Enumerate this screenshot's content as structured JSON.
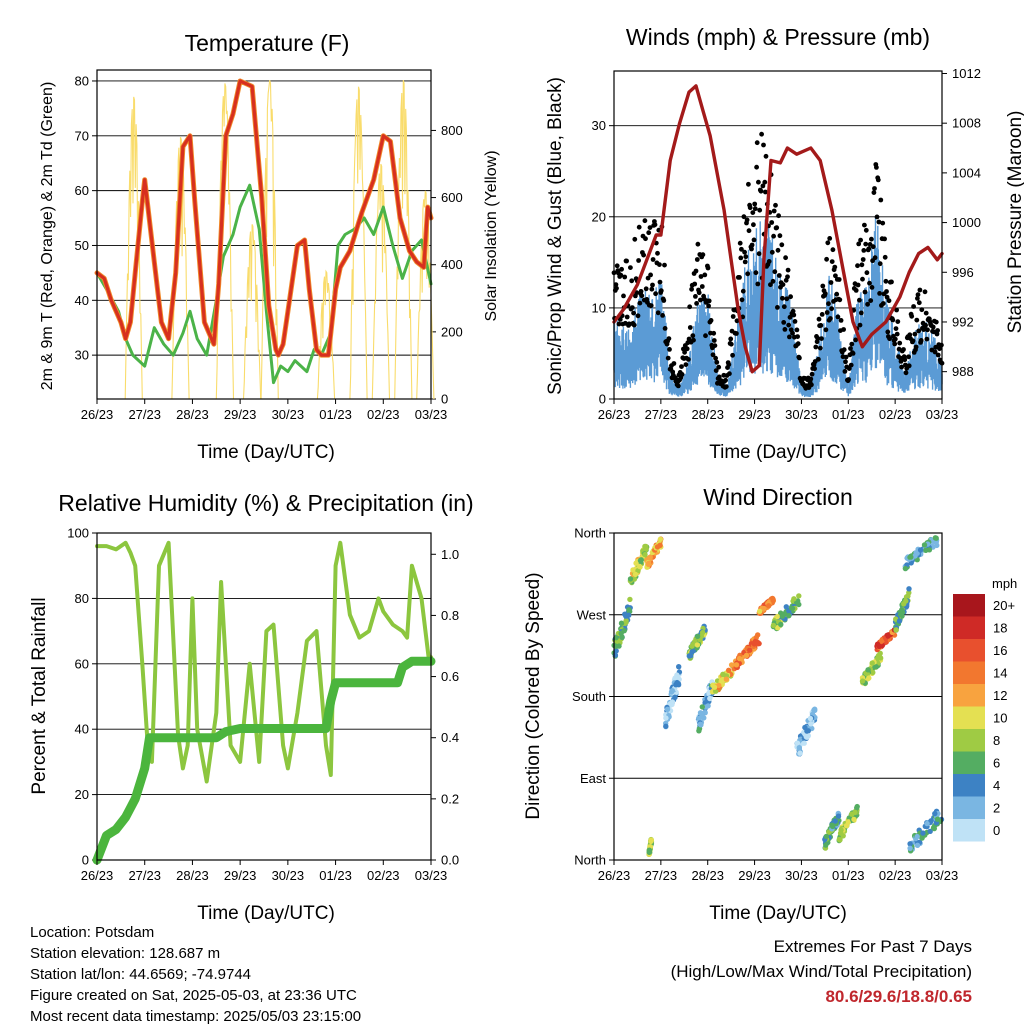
{
  "x_ticks": [
    "26/23",
    "27/23",
    "28/23",
    "29/23",
    "30/23",
    "01/23",
    "02/23",
    "03/23"
  ],
  "temperature": {
    "title": "Temperature (F)",
    "ylabel_left": "2m & 9m T (Red, Orange) & 2m Td (Green)",
    "ylabel_right": "Solar Insolation (Yellow)",
    "xlabel": "Time (Day/UTC)"
  },
  "winds": {
    "title": "Winds (mph) & Pressure (mb)",
    "ylabel_left": "Sonic/Prop Wind & Gust (Blue, Black)",
    "ylabel_right": "Station Pressure (Maroon)",
    "xlabel": "Time (Day/UTC)"
  },
  "humidity": {
    "title": "Relative Humidity (%) & Precipitation (in)",
    "ylabel_left": "Percent & Total Rainfall",
    "xlabel": "Time (Day/UTC)"
  },
  "direction": {
    "title": "Wind Direction",
    "ylabel_left": "Direction (Colored By Speed)",
    "xlabel": "Time (Day/UTC)",
    "legend_title": "mph",
    "legend_labels": [
      "20+",
      "18",
      "16",
      "14",
      "12",
      "10",
      "8",
      "6",
      "4",
      "2",
      "0"
    ],
    "legend_colors": [
      "#a8161c",
      "#cf2a26",
      "#e8502e",
      "#f2772f",
      "#f8a33f",
      "#e4e052",
      "#9fcb44",
      "#54ad62",
      "#3d82c4",
      "#7ab6e2",
      "#bfe2f6"
    ]
  },
  "info": {
    "location": "Location: Potsdam",
    "elevation": "Station elevation: 128.687 m",
    "latlon": "Station lat/lon: 44.6569; -74.9744",
    "created": "Figure created on Sat, 2025-05-03, at 23:36 UTC",
    "recent": "Most recent data timestamp: 2025/05/03 23:15:00"
  },
  "extremes": {
    "line1": "Extremes For Past 7 Days",
    "line2": "(High/Low/Max Wind/Total Precipitation)",
    "values": "80.6/29.6/18.8/0.65"
  },
  "chart_data": [
    {
      "type": "line",
      "title": "Temperature (F)",
      "xlabel": "Time (Day/UTC)",
      "ylabel": "2m & 9m T (Red, Orange) & 2m Td (Green)",
      "ylim": [
        22,
        82
      ],
      "y_ticks": [
        30,
        40,
        50,
        60,
        70,
        80
      ],
      "y2label": "Solar Insolation (Yellow)",
      "y2lim": [
        0,
        980
      ],
      "y2_ticks": [
        0,
        200,
        400,
        600,
        800
      ],
      "x_days": [
        0,
        7
      ],
      "series": [
        {
          "name": "2m & 9m T",
          "color": "#d7301f",
          "x": [
            0,
            0.15,
            0.3,
            0.5,
            0.6,
            0.7,
            0.8,
            0.95,
            1.0,
            1.2,
            1.35,
            1.5,
            1.65,
            1.8,
            1.95,
            2.05,
            2.25,
            2.45,
            2.55,
            2.7,
            2.85,
            3.0,
            3.25,
            3.45,
            3.6,
            3.75,
            3.8,
            3.9,
            4.0,
            4.2,
            4.35,
            4.45,
            4.6,
            4.7,
            4.85,
            5.0,
            5.1,
            5.3,
            5.55,
            5.8,
            6.0,
            6.15,
            6.35,
            6.55,
            6.7,
            6.85,
            6.93,
            7.0
          ],
          "y": [
            45,
            44,
            40,
            36,
            33,
            36,
            45,
            58,
            62,
            47,
            36,
            33,
            45,
            68,
            70,
            58,
            36,
            32,
            43,
            70,
            74,
            80,
            79,
            59,
            39,
            31,
            30,
            32,
            38,
            50,
            51,
            42,
            31,
            30,
            30,
            42,
            46,
            49,
            56,
            62,
            70,
            69,
            55,
            49,
            47,
            46,
            57,
            55
          ]
        },
        {
          "name": "2m Td",
          "color": "#4bb348",
          "x": [
            0,
            0.2,
            0.45,
            0.6,
            0.75,
            1.0,
            1.2,
            1.4,
            1.6,
            1.8,
            1.95,
            2.1,
            2.3,
            2.5,
            2.65,
            2.85,
            3.0,
            3.2,
            3.4,
            3.55,
            3.7,
            3.85,
            4.0,
            4.15,
            4.4,
            4.55,
            4.7,
            4.9,
            5.05,
            5.2,
            5.4,
            5.6,
            5.8,
            6.0,
            6.2,
            6.4,
            6.6,
            6.8,
            7.0
          ],
          "y": [
            45,
            42,
            38,
            33,
            30,
            28,
            35,
            32,
            30,
            34,
            38,
            33,
            30,
            40,
            48,
            52,
            57,
            61,
            53,
            38,
            25,
            28,
            27,
            29,
            27,
            31,
            30,
            34,
            50,
            52,
            53,
            55,
            52,
            57,
            50,
            44,
            49,
            51,
            43
          ]
        }
      ],
      "insolation_peaks": [
        {
          "x": 0.77,
          "v": 900
        },
        {
          "x": 1.75,
          "v": 780
        },
        {
          "x": 2.68,
          "v": 940
        },
        {
          "x": 3.25,
          "v": 520
        },
        {
          "x": 3.62,
          "v": 950
        },
        {
          "x": 4.8,
          "v": 380
        },
        {
          "x": 5.48,
          "v": 930
        },
        {
          "x": 5.95,
          "v": 700
        },
        {
          "x": 6.42,
          "v": 950
        },
        {
          "x": 6.88,
          "v": 620
        }
      ]
    },
    {
      "type": "line",
      "title": "Winds (mph) & Pressure (mb)",
      "xlabel": "Time (Day/UTC)",
      "ylabel": "Sonic/Prop Wind & Gust (Blue, Black)",
      "ylim": [
        0,
        36
      ],
      "y_ticks": [
        0,
        10,
        20,
        30
      ],
      "y2label": "Station Pressure (Maroon)",
      "y2lim": [
        985.8,
        1012.2
      ],
      "y2_ticks": [
        988,
        992,
        996,
        1000,
        1004,
        1008,
        1012
      ],
      "x_days": [
        0,
        7
      ],
      "series": [
        {
          "name": "Sonic/Prop Wind",
          "color": "#5b9bd5",
          "x": [
            0,
            0.3,
            0.6,
            0.8,
            1.0,
            1.2,
            1.4,
            1.6,
            1.8,
            2.0,
            2.2,
            2.4,
            2.6,
            2.8,
            3.0,
            3.2,
            3.4,
            3.6,
            3.8,
            4.0,
            4.2,
            4.4,
            4.6,
            4.8,
            5.0,
            5.2,
            5.4,
            5.6,
            5.8,
            6.0,
            6.2,
            6.4,
            6.6,
            6.8,
            7.0
          ],
          "y": [
            6,
            5,
            9,
            8,
            10,
            2,
            1,
            3,
            8,
            8,
            2,
            1,
            5,
            10,
            13,
            14,
            12,
            9,
            7,
            1,
            1,
            5,
            10,
            6,
            1,
            8,
            9,
            14,
            8,
            5,
            2,
            5,
            6,
            5,
            3
          ]
        },
        {
          "name": "Gust",
          "color": "#000000",
          "x": [
            0,
            0.3,
            0.6,
            0.8,
            1.0,
            1.2,
            1.4,
            1.6,
            1.8,
            2.0,
            2.2,
            2.4,
            2.6,
            2.8,
            3.0,
            3.2,
            3.4,
            3.6,
            3.8,
            4.0,
            4.2,
            4.4,
            4.6,
            4.8,
            5.0,
            5.2,
            5.4,
            5.6,
            5.8,
            6.0,
            6.2,
            6.4,
            6.6,
            6.8,
            7.0
          ],
          "y": [
            12,
            13,
            16,
            15,
            17,
            4,
            2,
            8,
            14,
            12,
            3,
            2,
            10,
            18,
            22,
            24,
            19,
            14,
            11,
            2,
            2,
            8,
            15,
            11,
            2,
            14,
            16,
            24,
            13,
            9,
            4,
            9,
            10,
            8,
            5
          ]
        },
        {
          "name": "Station Pressure",
          "color": "#a31a1a",
          "x": [
            0,
            0.2,
            0.5,
            0.7,
            0.9,
            1.0,
            1.2,
            1.4,
            1.6,
            1.75,
            1.9,
            2.05,
            2.2,
            2.35,
            2.5,
            2.65,
            2.8,
            2.95,
            3.1,
            3.2,
            3.35,
            3.55,
            3.7,
            3.9,
            4.2,
            4.4,
            4.65,
            4.9,
            5.1,
            5.3,
            5.5,
            5.8,
            6.1,
            6.3,
            6.5,
            6.7,
            6.9,
            7.0
          ],
          "y": [
            992,
            993,
            995,
            997,
            999,
            999,
            1005,
            1008,
            1010.5,
            1011,
            1009,
            1007,
            1004,
            1001,
            997,
            993,
            990,
            988,
            988.5,
            997,
            1005,
            1004.8,
            1006,
            1005.5,
            1006,
            1005,
            1001,
            996,
            992,
            990,
            991,
            992,
            994,
            996,
            997.5,
            998,
            997,
            997.5
          ]
        }
      ]
    },
    {
      "type": "line",
      "title": "Relative Humidity (%) & Precipitation (in)",
      "xlabel": "Time (Day/UTC)",
      "ylabel": "Percent & Total Rainfall",
      "ylim": [
        0,
        100
      ],
      "y_ticks": [
        0,
        20,
        40,
        60,
        80,
        100
      ],
      "y2lim": [
        0,
        1.0696
      ],
      "y2_ticks": [
        0.0,
        0.2,
        0.4,
        0.6,
        0.8,
        1.0
      ],
      "x_days": [
        0,
        7
      ],
      "series": [
        {
          "name": "Relative Humidity",
          "color": "#8cc63f",
          "x": [
            0,
            0.2,
            0.4,
            0.6,
            0.7,
            0.8,
            0.95,
            1.05,
            1.15,
            1.3,
            1.5,
            1.7,
            1.8,
            1.9,
            2.0,
            2.1,
            2.3,
            2.5,
            2.6,
            2.8,
            3.0,
            3.2,
            3.4,
            3.55,
            3.7,
            3.9,
            4.0,
            4.2,
            4.4,
            4.6,
            4.8,
            4.9,
            5.0,
            5.1,
            5.3,
            5.5,
            5.7,
            5.9,
            6.0,
            6.2,
            6.4,
            6.5,
            6.6,
            6.8,
            6.95,
            7.0
          ],
          "y": [
            96,
            96,
            95,
            97,
            94,
            90,
            60,
            38,
            30,
            90,
            97,
            38,
            28,
            35,
            80,
            40,
            24,
            45,
            85,
            35,
            30,
            60,
            30,
            70,
            72,
            35,
            28,
            45,
            67,
            70,
            35,
            26,
            90,
            97,
            75,
            68,
            70,
            80,
            76,
            72,
            70,
            68,
            90,
            80,
            62,
            62
          ]
        },
        {
          "name": "Total Precipitation",
          "color": "#4bb53d",
          "x": [
            0,
            0.2,
            0.4,
            0.6,
            0.8,
            1.0,
            1.1,
            1.2,
            1.5,
            2.0,
            2.5,
            2.7,
            3.0,
            3.5,
            4.0,
            4.5,
            4.8,
            4.9,
            5.0,
            5.5,
            6.0,
            6.3,
            6.4,
            6.6,
            7.0
          ],
          "y": [
            0,
            0.08,
            0.1,
            0.14,
            0.2,
            0.3,
            0.4,
            0.4,
            0.4,
            0.4,
            0.4,
            0.42,
            0.43,
            0.43,
            0.43,
            0.43,
            0.43,
            0.52,
            0.58,
            0.58,
            0.58,
            0.58,
            0.63,
            0.65,
            0.65
          ]
        }
      ]
    },
    {
      "type": "scatter",
      "title": "Wind Direction",
      "xlabel": "Time (Day/UTC)",
      "ylabel": "Direction (Colored By Speed)",
      "ylim": [
        0,
        360
      ],
      "y_ticks": [
        "North",
        "East",
        "South",
        "West",
        "North"
      ],
      "x_days": [
        0,
        7
      ],
      "clusters": [
        {
          "x0": 0.0,
          "x1": 0.35,
          "d0": 220,
          "d1": 290,
          "speed": 6
        },
        {
          "x0": 0.35,
          "x1": 0.7,
          "d0": 300,
          "d1": 350,
          "speed": 9
        },
        {
          "x0": 0.7,
          "x1": 1.0,
          "d0": 320,
          "d1": 355,
          "speed": 12
        },
        {
          "x0": 0.75,
          "x1": 0.8,
          "d0": 5,
          "d1": 25,
          "speed": 8
        },
        {
          "x0": 1.1,
          "x1": 1.4,
          "d0": 140,
          "d1": 220,
          "speed": 2
        },
        {
          "x0": 1.6,
          "x1": 1.95,
          "d0": 220,
          "d1": 260,
          "speed": 7
        },
        {
          "x0": 1.8,
          "x1": 2.1,
          "d0": 140,
          "d1": 200,
          "speed": 3
        },
        {
          "x0": 2.1,
          "x1": 2.6,
          "d0": 180,
          "d1": 220,
          "speed": 11
        },
        {
          "x0": 2.6,
          "x1": 3.1,
          "d0": 210,
          "d1": 250,
          "speed": 14
        },
        {
          "x0": 3.1,
          "x1": 3.4,
          "d0": 270,
          "d1": 290,
          "speed": 13
        },
        {
          "x0": 3.4,
          "x1": 3.95,
          "d0": 250,
          "d1": 295,
          "speed": 7
        },
        {
          "x0": 3.9,
          "x1": 4.3,
          "d0": 110,
          "d1": 170,
          "speed": 2
        },
        {
          "x0": 4.5,
          "x1": 4.8,
          "d0": 10,
          "d1": 55,
          "speed": 5
        },
        {
          "x0": 4.8,
          "x1": 5.2,
          "d0": 20,
          "d1": 60,
          "speed": 8
        },
        {
          "x0": 5.3,
          "x1": 5.7,
          "d0": 190,
          "d1": 230,
          "speed": 8
        },
        {
          "x0": 5.6,
          "x1": 6.0,
          "d0": 230,
          "d1": 255,
          "speed": 15
        },
        {
          "x0": 6.0,
          "x1": 6.3,
          "d0": 250,
          "d1": 300,
          "speed": 6
        },
        {
          "x0": 6.2,
          "x1": 6.9,
          "d0": 320,
          "d1": 358,
          "speed": 4
        },
        {
          "x0": 6.3,
          "x1": 7.0,
          "d0": 5,
          "d1": 60,
          "speed": 4
        }
      ]
    }
  ]
}
